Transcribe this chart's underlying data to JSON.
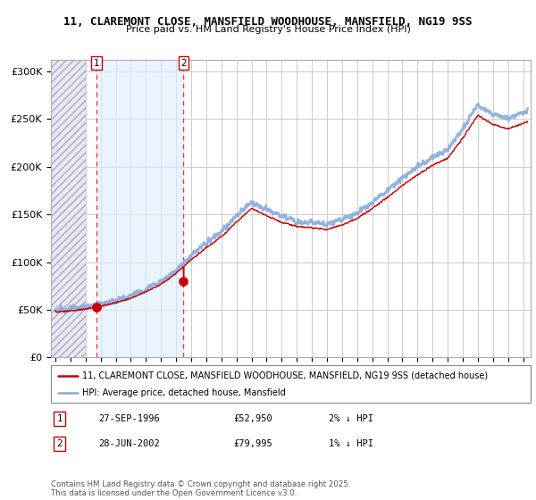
{
  "title1": "11, CLAREMONT CLOSE, MANSFIELD WOODHOUSE, MANSFIELD, NG19 9SS",
  "title2": "Price paid vs. HM Land Registry's House Price Index (HPI)",
  "ylabel_ticks": [
    "£0",
    "£50K",
    "£100K",
    "£150K",
    "£200K",
    "£250K",
    "£300K"
  ],
  "ytick_values": [
    0,
    50000,
    100000,
    150000,
    200000,
    250000,
    300000
  ],
  "ylim": [
    0,
    312000
  ],
  "xlim_start": 1993.7,
  "xlim_end": 2025.5,
  "xtick_years": [
    1994,
    1995,
    1996,
    1997,
    1998,
    1999,
    2000,
    2001,
    2002,
    2003,
    2004,
    2005,
    2006,
    2007,
    2008,
    2009,
    2010,
    2011,
    2012,
    2013,
    2014,
    2015,
    2016,
    2017,
    2018,
    2019,
    2020,
    2021,
    2022,
    2023,
    2024,
    2025
  ],
  "purchase1_year": 1996.74,
  "purchase1_price": 52950,
  "purchase1_label": "1",
  "purchase2_year": 2002.49,
  "purchase2_price": 79995,
  "purchase2_label": "2",
  "legend_line1": "11, CLAREMONT CLOSE, MANSFIELD WOODHOUSE, MANSFIELD, NG19 9SS (detached house)",
  "legend_line2": "HPI: Average price, detached house, Mansfield",
  "annotation1_date": "27-SEP-1996",
  "annotation1_price": "£52,950",
  "annotation1_hpi": "2% ↓ HPI",
  "annotation2_date": "28-JUN-2002",
  "annotation2_price": "£79,995",
  "annotation2_hpi": "1% ↓ HPI",
  "footer": "Contains HM Land Registry data © Crown copyright and database right 2025.\nThis data is licensed under the Open Government Licence v3.0.",
  "grid_color": "#cccccc",
  "plot_bg": "#ffffff",
  "line_color_property": "#cc0000",
  "line_color_hpi": "#88aadd",
  "marker_color": "#cc0000",
  "dashed_line_color": "#dd4444",
  "hatch_region_end": 1996.0,
  "blue_region_start": 1996.74,
  "blue_region_end": 2002.49
}
